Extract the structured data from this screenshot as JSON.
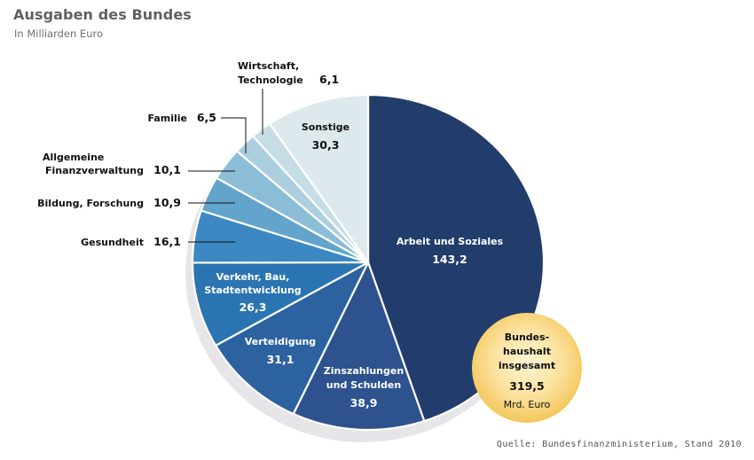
{
  "header": {
    "title": "Ausgaben des Bundes",
    "subtitle": "In Milliarden Euro"
  },
  "footer": {
    "source": "Quelle: Bundesfinanzministerium, Stand 2010"
  },
  "total_badge": {
    "line1": "Bundes-",
    "line2": "haushalt",
    "line3": "insgesamt",
    "value": "319,5",
    "unit": "Mrd. Euro"
  },
  "chart_data": {
    "type": "pie",
    "title": "Ausgaben des Bundes",
    "subtitle": "In Milliarden Euro",
    "unit": "Mrd. Euro",
    "total": 319.5,
    "start": "top",
    "direction": "clockwise",
    "slices": [
      {
        "label": "Arbeit und Soziales",
        "lines": [
          "Arbeit und Soziales"
        ],
        "value": 143.2,
        "display": "143,2",
        "color": "#223d6b",
        "label_placement": "inside",
        "text_color": "#ffffff"
      },
      {
        "label": "Zinszahlungen und Schulden",
        "lines": [
          "Zinszahlungen",
          "und Schulden"
        ],
        "value": 38.9,
        "display": "38,9",
        "color": "#2d528e",
        "label_placement": "inside",
        "text_color": "#ffffff"
      },
      {
        "label": "Verteidigung",
        "lines": [
          "Verteidigung"
        ],
        "value": 31.1,
        "display": "31,1",
        "color": "#2d62a0",
        "label_placement": "inside",
        "text_color": "#ffffff"
      },
      {
        "label": "Verkehr, Bau, Stadtentwicklung",
        "lines": [
          "Verkehr, Bau,",
          "Stadtentwicklung"
        ],
        "value": 26.3,
        "display": "26,3",
        "color": "#2b74b2",
        "label_placement": "inside",
        "text_color": "#ffffff"
      },
      {
        "label": "Gesundheit",
        "lines": [
          "Gesundheit"
        ],
        "value": 16.1,
        "display": "16,1",
        "color": "#3b88c2",
        "label_placement": "outside",
        "text_color": "#111111"
      },
      {
        "label": "Bildung, Forschung",
        "lines": [
          "Bildung, Forschung"
        ],
        "value": 10.9,
        "display": "10,9",
        "color": "#62a4cb",
        "label_placement": "outside",
        "text_color": "#111111"
      },
      {
        "label": "Allgemeine Finanzverwaltung",
        "lines": [
          "Allgemeine",
          "Finanzverwaltung"
        ],
        "value": 10.1,
        "display": "10,1",
        "color": "#8bbdd6",
        "label_placement": "outside",
        "text_color": "#111111"
      },
      {
        "label": "Familie",
        "lines": [
          "Familie"
        ],
        "value": 6.5,
        "display": "6,5",
        "color": "#accfdf",
        "label_placement": "outside",
        "text_color": "#111111"
      },
      {
        "label": "Wirtschaft, Technologie",
        "lines": [
          "Wirtschaft,",
          "Technologie"
        ],
        "value": 6.1,
        "display": "6,1",
        "color": "#c6dde6",
        "label_placement": "outside",
        "text_color": "#111111"
      },
      {
        "label": "Sonstige",
        "lines": [
          "Sonstige"
        ],
        "value": 30.3,
        "display": "30,3",
        "color": "#dde9ec",
        "label_placement": "inside",
        "text_color": "#111111"
      }
    ],
    "colors": {
      "badge_inner": "#fff3c8",
      "badge_outer": "#f7cf6a",
      "shadow": "#e6e6e8",
      "title": "#606060"
    }
  }
}
